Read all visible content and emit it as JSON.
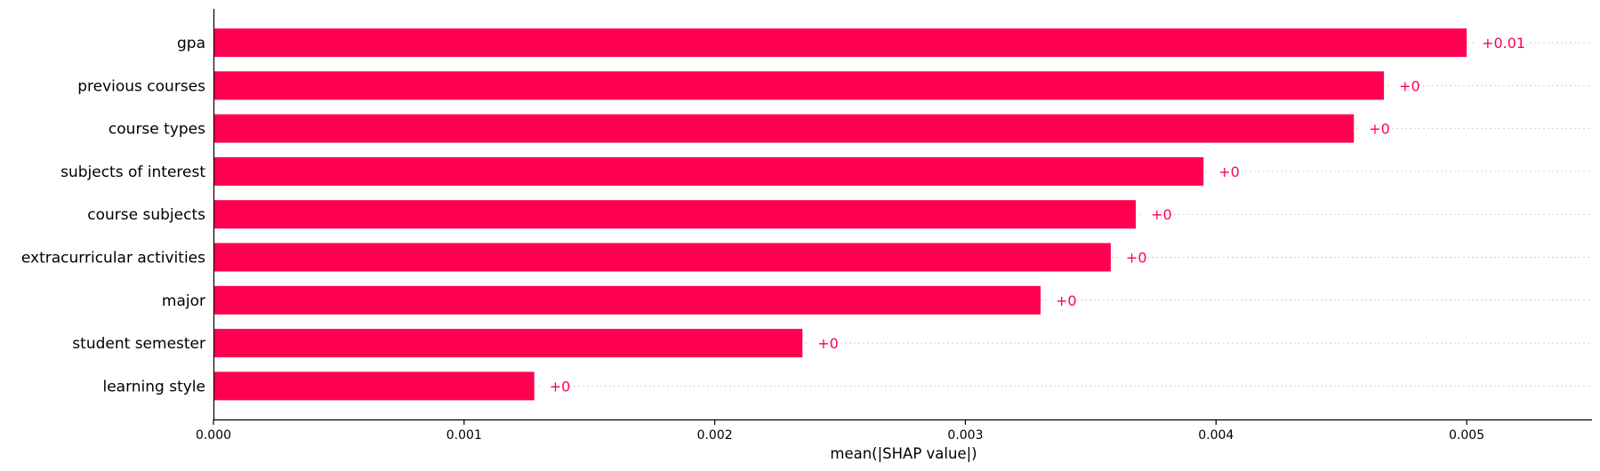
{
  "chart_data": {
    "type": "bar",
    "orientation": "horizontal",
    "categories": [
      "gpa",
      "previous courses",
      "course types",
      "subjects of interest",
      "course subjects",
      "extracurricular activities",
      "major",
      "student semester",
      "learning style"
    ],
    "values": [
      0.005,
      0.00467,
      0.00455,
      0.00395,
      0.00368,
      0.00358,
      0.0033,
      0.00235,
      0.00128
    ],
    "data_labels": [
      "+0.01",
      "+0",
      "+0",
      "+0",
      "+0",
      "+0",
      "+0",
      "+0",
      "+0"
    ],
    "xlabel": "mean(|SHAP value|)",
    "ylabel": "",
    "xlim": [
      0,
      0.0055
    ],
    "xticks": [
      0.0,
      0.001,
      0.002,
      0.003,
      0.004,
      0.005
    ],
    "xtick_labels": [
      "0.000",
      "0.001",
      "0.002",
      "0.003",
      "0.004",
      "0.005"
    ],
    "bar_color": "#ff0051",
    "label_color": "#ff0051",
    "grid": false
  }
}
